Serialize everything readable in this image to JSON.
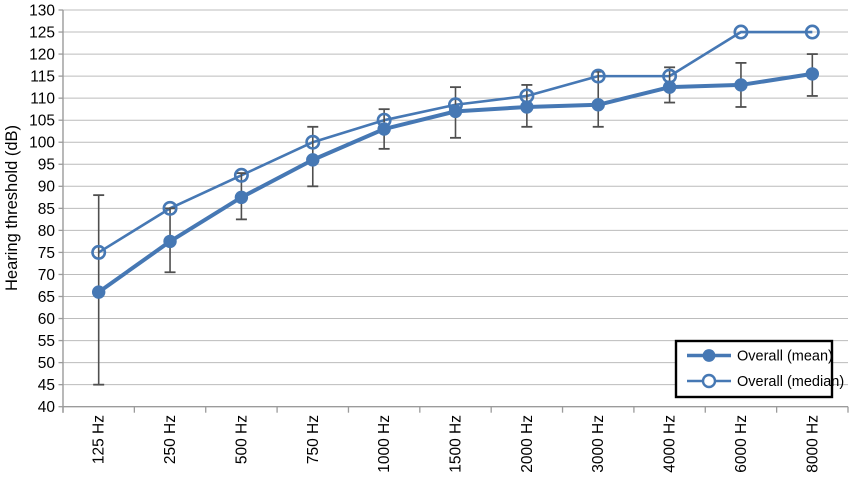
{
  "chart_data": {
    "type": "line",
    "title": "",
    "xlabel": "",
    "ylabel": "Hearing threshold (dB)",
    "categories": [
      "125 Hz",
      "250 Hz",
      "500 Hz",
      "750 Hz",
      "1000 Hz",
      "1500 Hz",
      "2000 Hz",
      "3000 Hz",
      "4000 Hz",
      "6000 Hz",
      "8000 Hz"
    ],
    "ylim": [
      40,
      130
    ],
    "y_ticks": [
      130,
      125,
      120,
      115,
      110,
      105,
      100,
      95,
      90,
      85,
      80,
      75,
      70,
      65,
      60,
      55,
      50,
      45,
      40
    ],
    "grid": true,
    "legend_position": "bottom-right",
    "series": [
      {
        "name": "Overall (mean)",
        "marker": "filled-circle",
        "values": [
          66,
          77.5,
          87.5,
          96,
          103,
          107,
          108,
          108.5,
          112.5,
          113,
          115.5
        ],
        "error_low": [
          45,
          70.5,
          82.5,
          90,
          98.5,
          101,
          103.5,
          103.5,
          109,
          108,
          110.5
        ],
        "error_high": [
          88,
          85,
          93,
          103.5,
          107.5,
          112.5,
          113,
          116,
          117,
          118,
          120
        ]
      },
      {
        "name": "Overall (median)",
        "marker": "open-circle",
        "values": [
          75,
          85,
          92.5,
          100,
          105,
          108.5,
          110.5,
          115,
          115,
          125,
          125
        ]
      }
    ],
    "colors": {
      "series_blue": "#4678B4",
      "error_bar": "#4f4f4f",
      "gridline": "#bcbcbc",
      "axis": "#9b9b9b",
      "text": "#000000",
      "background": "#ffffff",
      "legend_border": "#000000"
    }
  }
}
